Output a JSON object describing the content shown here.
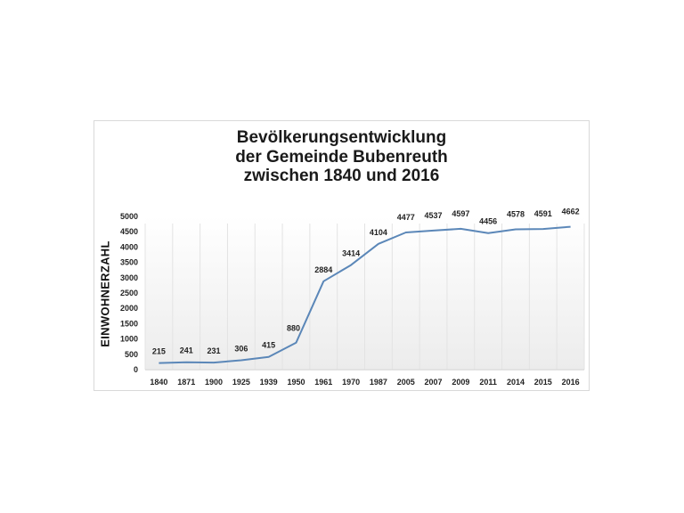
{
  "chart_data": {
    "type": "line",
    "title": "Bevölkerungsentwicklung der Gemeinde Bubenreuth zwischen 1840 und 2016",
    "title_lines": [
      "Bevölkerungsentwicklung",
      "der Gemeinde Bubenreuth",
      "zwischen 1840 und 2016"
    ],
    "xlabel": "",
    "ylabel": "EINWOHNERZAHL",
    "categories": [
      "1840",
      "1871",
      "1900",
      "1925",
      "1939",
      "1950",
      "1961",
      "1970",
      "1987",
      "2005",
      "2007",
      "2009",
      "2011",
      "2014",
      "2015",
      "2016"
    ],
    "series": [
      {
        "name": "Einwohnerzahl",
        "values": [
          215,
          241,
          231,
          306,
          415,
          880,
          2884,
          3414,
          4104,
          4477,
          4537,
          4597,
          4456,
          4578,
          4591,
          4662
        ],
        "color": "#5b87b8"
      }
    ],
    "ylim": [
      0,
      5000
    ],
    "yticks": [
      0,
      500,
      1000,
      1500,
      2000,
      2500,
      3000,
      3500,
      4000,
      4500,
      5000
    ],
    "grid": "vertical category lines",
    "legend": "none",
    "data_labels": true
  }
}
